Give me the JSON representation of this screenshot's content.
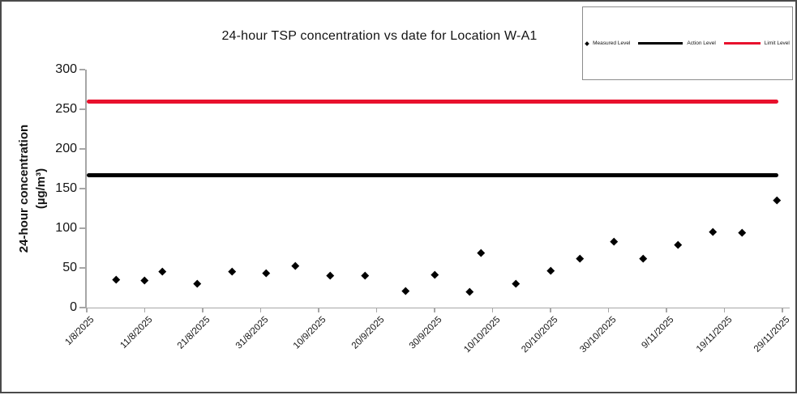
{
  "chart": {
    "title": "24-hour TSP concentration vs date for Location W-A1",
    "y_axis_label_line1": "24-hour concentration",
    "y_axis_label_line2": "(µg/m³)"
  },
  "legend": {
    "position": "top-right",
    "items": [
      {
        "label": "Measured Level",
        "marker": "diamond",
        "color": "#000000"
      },
      {
        "label": "Action Level",
        "marker": "line",
        "color": "#000000"
      },
      {
        "label": "Limit Level",
        "marker": "line",
        "color": "#e8112d"
      }
    ]
  },
  "chart_data": {
    "type": "scatter",
    "title": "24-hour TSP concentration vs date for Location W-A1",
    "xlabel": "date",
    "ylabel": "24-hour concentration (µg/m³)",
    "ylim": [
      0,
      300
    ],
    "y_ticks": [
      0,
      50,
      100,
      150,
      200,
      250,
      300
    ],
    "x_tick_labels": [
      "1/8/2025",
      "11/8/2025",
      "21/8/2025",
      "31/8/2025",
      "10/9/2025",
      "20/9/2025",
      "30/9/2025",
      "10/10/2025",
      "20/10/2025",
      "30/10/2025",
      "9/11/2025",
      "19/11/2025",
      "29/11/2025"
    ],
    "x_tick_day_offsets": [
      0,
      10,
      20,
      30,
      40,
      50,
      60,
      70,
      80,
      90,
      100,
      110,
      120
    ],
    "grid": false,
    "legend_position": "top-right",
    "series": [
      {
        "name": "Measured Level",
        "type": "scatter",
        "marker": "diamond",
        "color": "#000000",
        "points": [
          {
            "date": "6/8/2025",
            "day": 5,
            "value": 35
          },
          {
            "date": "11/8/2025",
            "day": 10,
            "value": 34
          },
          {
            "date": "14/8/2025",
            "day": 13,
            "value": 46
          },
          {
            "date": "20/8/2025",
            "day": 19,
            "value": 30
          },
          {
            "date": "26/8/2025",
            "day": 25,
            "value": 46
          },
          {
            "date": "1/9/2025",
            "day": 31,
            "value": 44
          },
          {
            "date": "6/9/2025",
            "day": 36,
            "value": 53
          },
          {
            "date": "12/9/2025",
            "day": 42,
            "value": 41
          },
          {
            "date": "18/9/2025",
            "day": 48,
            "value": 41
          },
          {
            "date": "25/9/2025",
            "day": 55,
            "value": 21
          },
          {
            "date": "30/9/2025",
            "day": 60,
            "value": 42
          },
          {
            "date": "6/10/2025",
            "day": 66,
            "value": 20
          },
          {
            "date": "8/10/2025",
            "day": 68,
            "value": 69
          },
          {
            "date": "14/10/2025",
            "day": 74,
            "value": 30
          },
          {
            "date": "20/10/2025",
            "day": 80,
            "value": 47
          },
          {
            "date": "25/10/2025",
            "day": 85,
            "value": 62
          },
          {
            "date": "31/10/2025",
            "day": 91,
            "value": 83
          },
          {
            "date": "5/11/2025",
            "day": 96,
            "value": 62
          },
          {
            "date": "11/11/2025",
            "day": 102,
            "value": 79
          },
          {
            "date": "17/11/2025",
            "day": 108,
            "value": 96
          },
          {
            "date": "22/11/2025",
            "day": 113,
            "value": 95
          },
          {
            "date": "28/11/2025",
            "day": 119,
            "value": 135
          }
        ]
      },
      {
        "name": "Action Level",
        "type": "hline",
        "color": "#000000",
        "value": 167
      },
      {
        "name": "Limit Level",
        "type": "hline",
        "color": "#e8112d",
        "value": 260
      }
    ]
  }
}
